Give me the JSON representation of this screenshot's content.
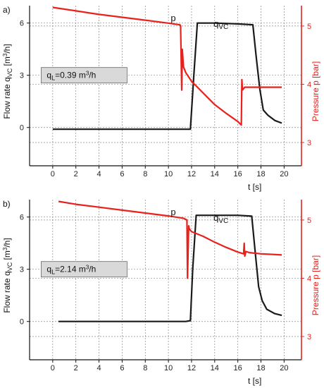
{
  "colors": {
    "flow": "#1a1a1a",
    "pressure": "#e8211d",
    "grid": "#888888",
    "annotation_box": "#d9d9d9"
  },
  "chart_data": [
    {
      "type": "line",
      "panel_label": "a)",
      "xlabel": "t [s]",
      "ylabel": "Flow rate q_VC [m³/h]",
      "ylabel_main": "Flow rate q",
      "ylabel_sub": "VC",
      "ylabel_unit": " [m",
      "ylabel_unit_sup": "3",
      "ylabel_unit_end": "/h]",
      "y2label": "Pressure p [bar]",
      "xlim": [
        -2,
        21.5
      ],
      "xticks": [
        0,
        2,
        4,
        6,
        8,
        10,
        12,
        14,
        16,
        18,
        20
      ],
      "ylim": [
        -2.2,
        7.0
      ],
      "yticks": [
        0,
        3,
        6
      ],
      "y2lim": [
        2.6,
        5.35
      ],
      "y2ticks": [
        3,
        4,
        5
      ],
      "grid": true,
      "annotation": "q_L=0.39 m³/h",
      "annotation_main": "q",
      "annotation_sub": "L",
      "annotation_rest": "=0.39 m",
      "annotation_sup": "3",
      "annotation_end": "/h",
      "label_p": "p",
      "label_q": "q",
      "label_q_sub": "VC",
      "series": [
        {
          "axis": "left",
          "color": "#1a1a1a",
          "x": [
            0,
            2,
            4,
            6,
            8,
            10,
            11.5,
            11.9,
            12.2,
            12.5,
            14,
            16,
            17.3,
            17.6,
            17.9,
            18.2,
            18.6,
            19.2,
            19.8
          ],
          "y": [
            -0.1,
            -0.1,
            -0.1,
            -0.1,
            -0.1,
            -0.1,
            -0.1,
            -0.1,
            3.0,
            6.0,
            6.0,
            5.95,
            5.9,
            4.0,
            2.2,
            1.0,
            0.7,
            0.4,
            0.25
          ]
        },
        {
          "axis": "right",
          "color": "#e8211d",
          "x": [
            0,
            2,
            4,
            6,
            8,
            10,
            11.0,
            11.05,
            11.15,
            11.2,
            11.3,
            11.5,
            12,
            13,
            14,
            15,
            16,
            16.3,
            16.35,
            16.4,
            16.6,
            17,
            18,
            19,
            19.8
          ],
          "y": [
            5.32,
            5.26,
            5.2,
            5.15,
            5.1,
            5.05,
            5.02,
            5.0,
            3.9,
            4.6,
            4.3,
            4.2,
            4.05,
            3.85,
            3.65,
            3.5,
            3.36,
            3.3,
            4.08,
            3.9,
            3.95,
            3.95,
            3.95,
            3.95,
            3.95
          ]
        }
      ]
    },
    {
      "type": "line",
      "panel_label": "b)",
      "xlabel": "t [s]",
      "ylabel": "Flow rate q_VC [m³/h]",
      "ylabel_main": "Flow rate q",
      "ylabel_sub": "VC",
      "ylabel_unit": " [m",
      "ylabel_unit_sup": "3",
      "ylabel_unit_end": "/h]",
      "y2label": "Pressure p [bar]",
      "xlim": [
        -2,
        21.5
      ],
      "xticks": [
        0,
        2,
        4,
        6,
        8,
        10,
        12,
        14,
        16,
        18,
        20
      ],
      "ylim": [
        -2.2,
        7.0
      ],
      "yticks": [
        0,
        3,
        6
      ],
      "y2lim": [
        2.6,
        5.35
      ],
      "y2ticks": [
        3,
        4,
        5
      ],
      "grid": true,
      "annotation": "q_L=2.14 m³/h",
      "annotation_main": "q",
      "annotation_sub": "L",
      "annotation_rest": "=2.14 m",
      "annotation_sup": "3",
      "annotation_end": "/h",
      "label_p": "p",
      "label_q": "q",
      "label_q_sub": "VC",
      "series": [
        {
          "axis": "left",
          "color": "#1a1a1a",
          "x": [
            0.5,
            2,
            4,
            6,
            8,
            10,
            11.5,
            11.9,
            12.1,
            12.4,
            14,
            16,
            17.2,
            17.5,
            17.8,
            18.1,
            18.5,
            19.2,
            19.8
          ],
          "y": [
            0.0,
            0.0,
            0.0,
            0.0,
            0.0,
            0.0,
            0.0,
            0.05,
            3.0,
            6.1,
            6.1,
            6.1,
            6.05,
            4.0,
            2.0,
            1.2,
            0.7,
            0.45,
            0.35
          ]
        },
        {
          "axis": "right",
          "color": "#e8211d",
          "x": [
            0.5,
            2,
            4,
            6,
            8,
            10,
            11.3,
            11.6,
            11.65,
            11.75,
            11.8,
            12,
            13,
            14,
            15,
            16,
            16.5,
            16.55,
            16.6,
            16.7,
            17,
            18,
            19,
            19.8
          ],
          "y": [
            5.32,
            5.27,
            5.22,
            5.17,
            5.12,
            5.07,
            5.03,
            5.0,
            4.0,
            4.9,
            4.85,
            4.8,
            4.72,
            4.62,
            4.53,
            4.45,
            4.42,
            4.6,
            4.38,
            4.46,
            4.44,
            4.42,
            4.41,
            4.4
          ]
        }
      ]
    }
  ]
}
